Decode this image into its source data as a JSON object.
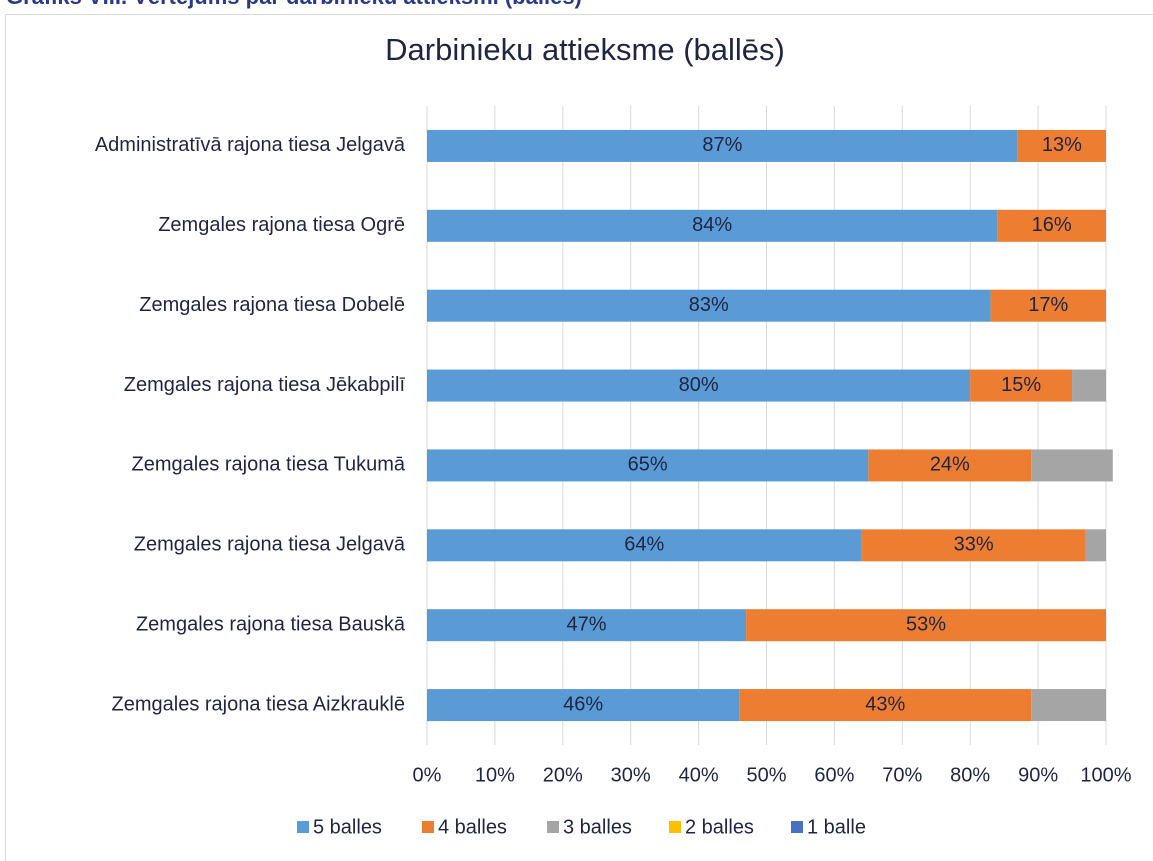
{
  "caption": "Grafiks VIII. Vērtējums par darbinieku attieksmi (balles)",
  "chart_data": {
    "type": "hbar_stacked",
    "title": "Darbinieku attieksme (ballēs)",
    "categories": [
      "Administratīvā rajona tiesa Jelgavā",
      "Zemgales rajona tiesa Ogrē",
      "Zemgales rajona tiesa Dobelē",
      "Zemgales rajona tiesa Jēkabpilī",
      "Zemgales rajona tiesa Tukumā",
      "Zemgales rajona tiesa Jelgavā",
      "Zemgales rajona tiesa Bauskā",
      "Zemgales rajona tiesa Aizkrauklē"
    ],
    "series": [
      {
        "name": "5 balles",
        "color": "#5b9bd5",
        "values": [
          87,
          84,
          83,
          80,
          65,
          64,
          47,
          46
        ],
        "value_labels": [
          "87%",
          "84%",
          "83%",
          "80%",
          "65%",
          "64%",
          "47%",
          "46%"
        ]
      },
      {
        "name": "4 balles",
        "color": "#ed7d31",
        "values": [
          13,
          16,
          17,
          15,
          24,
          33,
          53,
          43
        ],
        "value_labels": [
          "13%",
          "16%",
          "17%",
          "15%",
          "24%",
          "33%",
          "53%",
          "43%"
        ]
      },
      {
        "name": "3 balles",
        "color": "#a5a5a5",
        "values": [
          0,
          0,
          0,
          5,
          12,
          3,
          0,
          11
        ]
      },
      {
        "name": "2 balles",
        "color": "#ffc000",
        "values": [
          0,
          0,
          0,
          0,
          0,
          0,
          0,
          0
        ]
      },
      {
        "name": "1 balle",
        "color": "#4472c4",
        "values": [
          0,
          0,
          0,
          0,
          0,
          0,
          0,
          0
        ]
      }
    ],
    "xlim": [
      0,
      100
    ],
    "xticks": [
      {
        "value": 0,
        "label": "0%"
      },
      {
        "value": 10,
        "label": "10%"
      },
      {
        "value": 20,
        "label": "20%"
      },
      {
        "value": 30,
        "label": "30%"
      },
      {
        "value": 40,
        "label": "40%"
      },
      {
        "value": 50,
        "label": "50%"
      },
      {
        "value": 60,
        "label": "60%"
      },
      {
        "value": 70,
        "label": "70%"
      },
      {
        "value": 80,
        "label": "80%"
      },
      {
        "value": 90,
        "label": "90%"
      },
      {
        "value": 100,
        "label": "100%"
      }
    ],
    "grid": true,
    "legend": "bottom"
  }
}
